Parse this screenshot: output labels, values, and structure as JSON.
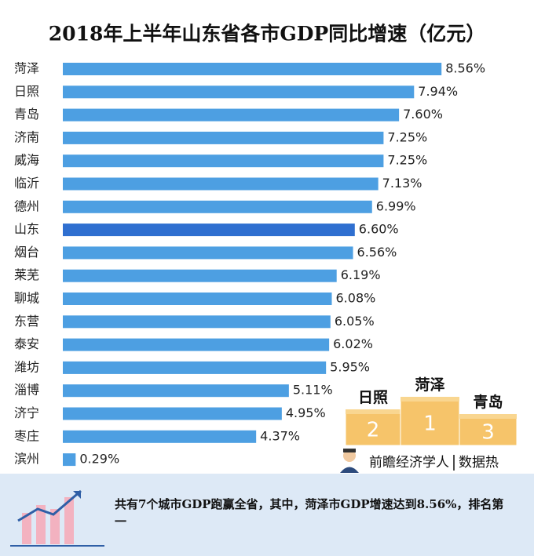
{
  "chart_data": {
    "type": "bar",
    "orientation": "horizontal",
    "title": "2018年上半年山东省各市GDP同比增速（亿元）",
    "categories": [
      "菏泽",
      "日照",
      "青岛",
      "济南",
      "威海",
      "临沂",
      "德州",
      "山东",
      "烟台",
      "莱芜",
      "聊城",
      "东营",
      "泰安",
      "潍坊",
      "淄博",
      "济宁",
      "枣庄",
      "滨州"
    ],
    "values": [
      8.56,
      7.94,
      7.6,
      7.25,
      7.25,
      7.13,
      6.99,
      6.6,
      6.56,
      6.19,
      6.08,
      6.05,
      6.02,
      5.95,
      5.11,
      4.95,
      4.37,
      0.29
    ],
    "value_labels": [
      "8.56%",
      "7.94%",
      "7.60%",
      "7.25%",
      "7.25%",
      "7.13%",
      "6.99%",
      "6.60%",
      "6.56%",
      "6.19%",
      "6.08%",
      "6.05%",
      "6.02%",
      "5.95%",
      "5.11%",
      "4.95%",
      "4.37%",
      "0.29%"
    ],
    "colors": [
      "#4d9fe2",
      "#4d9fe2",
      "#4d9fe2",
      "#4d9fe2",
      "#4d9fe2",
      "#4d9fe2",
      "#4d9fe2",
      "#2f6fd0",
      "#4d9fe2",
      "#4d9fe2",
      "#4d9fe2",
      "#4d9fe2",
      "#4d9fe2",
      "#4d9fe2",
      "#4d9fe2",
      "#4d9fe2",
      "#4d9fe2",
      "#4d9fe2"
    ],
    "xlim": [
      0,
      9
    ]
  },
  "podium": [
    {
      "name": "日照",
      "rank": "2"
    },
    {
      "name": "菏泽",
      "rank": "1"
    },
    {
      "name": "青岛",
      "rank": "3"
    }
  ],
  "brand": {
    "name": "前瞻经济学人",
    "tag": "数据热"
  },
  "footer": "共有7个城市GDP跑赢全省，其中，菏泽市GDP增速达到8.56%，排名第一"
}
